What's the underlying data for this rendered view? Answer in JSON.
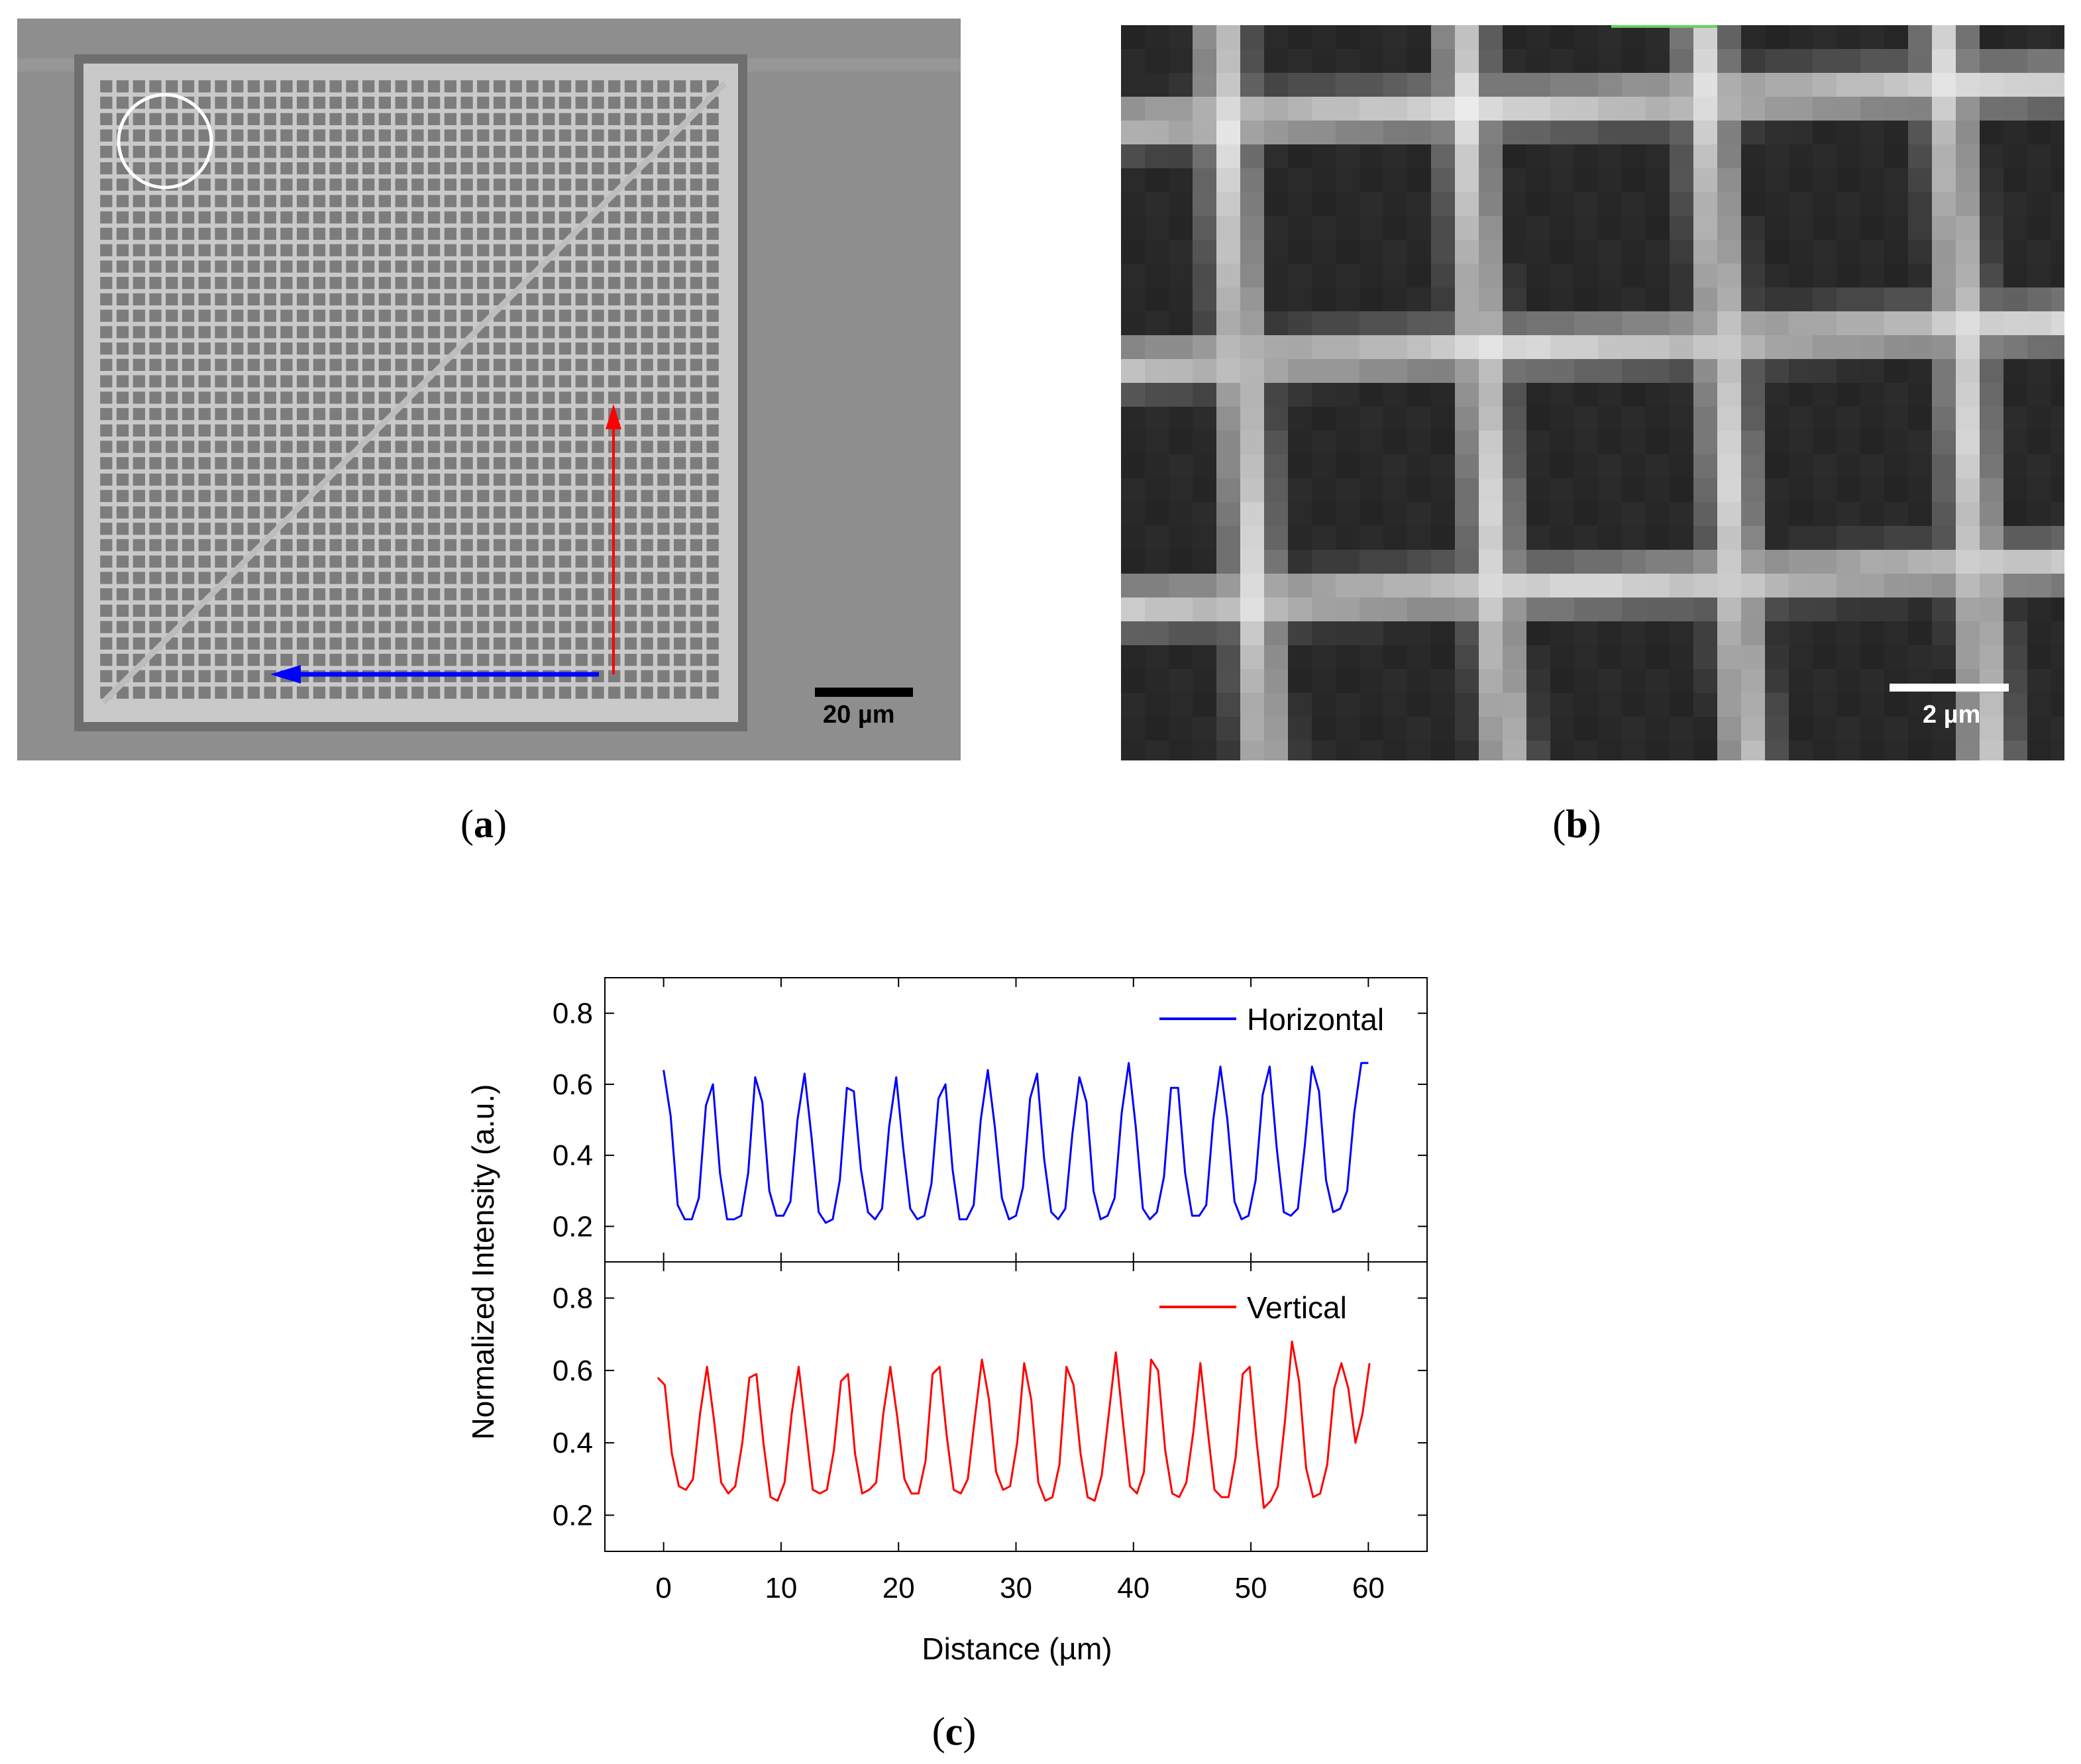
{
  "panels": {
    "a": {
      "label_letter": "a",
      "scale_bar_label": "20 µm"
    },
    "b": {
      "label_letter": "b",
      "scale_bar_label": "2 µm"
    },
    "c": {
      "label_letter": "c"
    }
  },
  "colors": {
    "horizontal": "#0000ff",
    "vertical": "#ff0000",
    "sem_background": "#8e8e8e",
    "circle": "#ffffff"
  },
  "chart_data": {
    "type": "line",
    "xlabel": "Distance (µm)",
    "ylabel": "Normalized Intensity (a.u.)",
    "xlim": [
      -5,
      65
    ],
    "x_ticks": [
      0,
      10,
      20,
      30,
      40,
      50,
      60
    ],
    "x_tick_labels": [
      "0",
      "10",
      "20",
      "30",
      "40",
      "50",
      "60"
    ],
    "subplots": [
      {
        "legend": "Horizontal",
        "legend_position": "top-right",
        "ylim": [
          0.1,
          0.9
        ],
        "y_ticks": [
          0.2,
          0.4,
          0.6,
          0.8
        ],
        "y_tick_labels": [
          "0.2",
          "0.4",
          "0.6",
          "0.8"
        ],
        "series": [
          {
            "name": "Horizontal",
            "x": [
              0.0,
              0.6,
              1.2,
              1.8,
              2.4,
              3.0,
              3.6,
              4.2,
              4.8,
              5.4,
              6.0,
              6.6,
              7.2,
              7.8,
              8.4,
              9.0,
              9.6,
              10.2,
              10.8,
              11.4,
              12.0,
              12.6,
              13.2,
              13.8,
              14.4,
              15.0,
              15.6,
              16.2,
              16.8,
              17.4,
              18.0,
              18.6,
              19.2,
              19.8,
              20.4,
              21.0,
              21.6,
              22.2,
              22.8,
              23.4,
              24.0,
              24.6,
              25.2,
              25.8,
              26.4,
              27.0,
              27.6,
              28.2,
              28.8,
              29.4,
              30.0,
              30.6,
              31.2,
              31.8,
              32.4,
              33.0,
              33.6,
              34.2,
              34.8,
              35.4,
              36.0,
              36.6,
              37.2,
              37.8,
              38.4,
              39.0,
              39.6,
              40.2,
              40.8,
              41.4,
              42.0,
              42.6,
              43.2,
              43.8,
              44.4,
              45.0,
              45.6,
              46.2,
              46.8,
              47.4,
              48.0,
              48.6,
              49.2,
              49.8,
              50.4,
              51.0,
              51.6,
              52.2,
              52.8,
              53.4,
              54.0,
              54.6,
              55.2,
              55.8,
              56.4,
              57.0,
              57.6,
              58.2,
              58.8,
              59.4,
              60.0
            ],
            "y": [
              0.64,
              0.51,
              0.26,
              0.22,
              0.22,
              0.28,
              0.54,
              0.6,
              0.35,
              0.22,
              0.22,
              0.23,
              0.35,
              0.62,
              0.55,
              0.3,
              0.23,
              0.23,
              0.27,
              0.5,
              0.63,
              0.45,
              0.24,
              0.21,
              0.22,
              0.33,
              0.59,
              0.58,
              0.36,
              0.24,
              0.22,
              0.25,
              0.48,
              0.62,
              0.42,
              0.25,
              0.22,
              0.23,
              0.32,
              0.56,
              0.6,
              0.36,
              0.22,
              0.22,
              0.26,
              0.5,
              0.64,
              0.48,
              0.28,
              0.22,
              0.23,
              0.31,
              0.56,
              0.63,
              0.39,
              0.24,
              0.22,
              0.25,
              0.46,
              0.62,
              0.55,
              0.3,
              0.22,
              0.23,
              0.28,
              0.52,
              0.66,
              0.48,
              0.25,
              0.22,
              0.24,
              0.34,
              0.59,
              0.59,
              0.35,
              0.23,
              0.23,
              0.26,
              0.5,
              0.65,
              0.5,
              0.27,
              0.22,
              0.23,
              0.33,
              0.57,
              0.65,
              0.42,
              0.24,
              0.23,
              0.25,
              0.43,
              0.65,
              0.58,
              0.33,
              0.24,
              0.25,
              0.3,
              0.52,
              0.66,
              0.66
            ]
          }
        ]
      },
      {
        "legend": "Vertical",
        "legend_position": "top-right",
        "ylim": [
          0.1,
          0.9
        ],
        "y_ticks": [
          0.2,
          0.4,
          0.6,
          0.8
        ],
        "y_tick_labels": [
          "0.2",
          "0.4",
          "0.6",
          "0.8"
        ],
        "series": [
          {
            "name": "Vertical",
            "x": [
              -0.5,
              0.1,
              0.7,
              1.3,
              1.9,
              2.5,
              3.1,
              3.7,
              4.3,
              4.9,
              5.5,
              6.1,
              6.7,
              7.3,
              7.9,
              8.5,
              9.1,
              9.7,
              10.3,
              10.9,
              11.5,
              12.1,
              12.7,
              13.3,
              13.9,
              14.5,
              15.1,
              15.7,
              16.3,
              16.9,
              17.5,
              18.1,
              18.7,
              19.3,
              19.9,
              20.5,
              21.1,
              21.7,
              22.3,
              22.9,
              23.5,
              24.1,
              24.7,
              25.3,
              25.9,
              26.5,
              27.1,
              27.7,
              28.3,
              28.9,
              29.5,
              30.1,
              30.7,
              31.3,
              31.9,
              32.5,
              33.1,
              33.7,
              34.3,
              34.9,
              35.5,
              36.1,
              36.7,
              37.3,
              37.9,
              38.5,
              39.1,
              39.7,
              40.3,
              40.9,
              41.5,
              42.1,
              42.7,
              43.3,
              43.9,
              44.5,
              45.1,
              45.7,
              46.3,
              46.9,
              47.5,
              48.1,
              48.7,
              49.3,
              49.9,
              50.5,
              51.1,
              51.7,
              52.3,
              52.9,
              53.5,
              54.1,
              54.7,
              55.3,
              55.9,
              56.5,
              57.1,
              57.7,
              58.3,
              58.9,
              59.5,
              60.1
            ],
            "y": [
              0.58,
              0.56,
              0.37,
              0.28,
              0.27,
              0.3,
              0.48,
              0.61,
              0.46,
              0.29,
              0.26,
              0.28,
              0.4,
              0.58,
              0.59,
              0.4,
              0.25,
              0.24,
              0.29,
              0.48,
              0.61,
              0.44,
              0.27,
              0.26,
              0.27,
              0.38,
              0.57,
              0.59,
              0.37,
              0.26,
              0.27,
              0.29,
              0.48,
              0.61,
              0.47,
              0.3,
              0.26,
              0.26,
              0.35,
              0.59,
              0.61,
              0.42,
              0.27,
              0.26,
              0.3,
              0.47,
              0.63,
              0.52,
              0.32,
              0.27,
              0.28,
              0.4,
              0.62,
              0.52,
              0.29,
              0.24,
              0.25,
              0.34,
              0.61,
              0.56,
              0.37,
              0.25,
              0.24,
              0.31,
              0.48,
              0.65,
              0.46,
              0.28,
              0.26,
              0.32,
              0.63,
              0.6,
              0.38,
              0.26,
              0.25,
              0.29,
              0.43,
              0.62,
              0.44,
              0.27,
              0.25,
              0.25,
              0.36,
              0.59,
              0.61,
              0.4,
              0.22,
              0.24,
              0.28,
              0.46,
              0.68,
              0.57,
              0.33,
              0.25,
              0.26,
              0.34,
              0.55,
              0.62,
              0.55,
              0.4,
              0.48,
              0.62
            ]
          }
        ]
      }
    ]
  }
}
